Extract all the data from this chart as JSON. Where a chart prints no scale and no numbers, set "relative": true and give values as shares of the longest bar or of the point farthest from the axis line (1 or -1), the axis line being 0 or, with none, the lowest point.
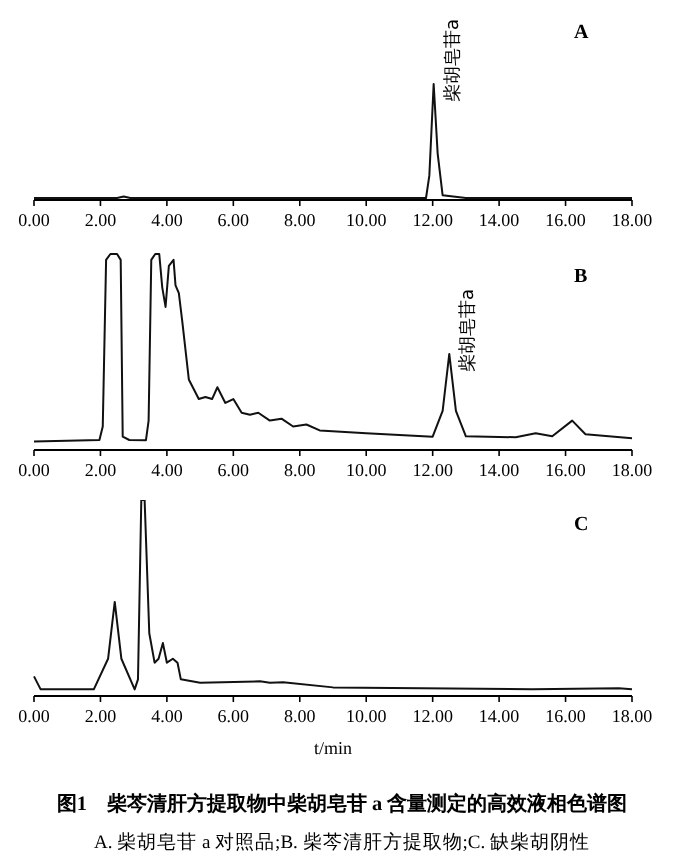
{
  "chart_data": [
    {
      "type": "line",
      "relative": true,
      "color": "#111111",
      "xlim": [
        0,
        18
      ],
      "xticks": [
        {
          "value": 0,
          "label": "0.00"
        },
        {
          "value": 2,
          "label": "2.00"
        },
        {
          "value": 4,
          "label": "4.00"
        },
        {
          "value": 6,
          "label": "6.00"
        },
        {
          "value": 8,
          "label": "8.00"
        },
        {
          "value": 10,
          "label": "10.00"
        },
        {
          "value": 12,
          "label": "12.00"
        },
        {
          "value": 14,
          "label": "14.00"
        },
        {
          "value": 16,
          "label": "16.00"
        },
        {
          "value": 18,
          "label": "18.00"
        }
      ],
      "x": [
        0,
        2.5,
        2.7,
        2.9,
        6,
        11.8,
        11.9,
        12.03,
        12.15,
        12.3,
        13,
        18
      ],
      "values": [
        0.017,
        0.017,
        0.03,
        0.017,
        0.017,
        0.017,
        0.21,
        1,
        0.4,
        0.04,
        0.017,
        0.017
      ],
      "annotations": [
        "A",
        {
          "text": "柴胡皂苷a",
          "x": 12.03,
          "y": 1
        }
      ]
    },
    {
      "type": "line",
      "relative": true,
      "color": "#111111",
      "xlim": [
        0,
        18
      ],
      "xticks": [
        {
          "value": 0,
          "label": "0.00"
        },
        {
          "value": 2,
          "label": "2.00"
        },
        {
          "value": 4,
          "label": "4.00"
        },
        {
          "value": 6,
          "label": "6.00"
        },
        {
          "value": 8,
          "label": "8.00"
        },
        {
          "value": 10,
          "label": "10.00"
        },
        {
          "value": 12,
          "label": "12.00"
        },
        {
          "value": 14,
          "label": "14.00"
        },
        {
          "value": 16,
          "label": "16.00"
        },
        {
          "value": 18,
          "label": "18.00"
        }
      ],
      "x": [
        0,
        1.97,
        2.07,
        2.17,
        2.3,
        2.5,
        2.61,
        2.67,
        2.87,
        3.37,
        3.45,
        3.53,
        3.65,
        3.77,
        3.86,
        3.96,
        4.06,
        4.2,
        4.26,
        4.36,
        4.46,
        4.66,
        4.96,
        5.16,
        5.36,
        5.52,
        5.76,
        6.0,
        6.25,
        6.5,
        6.75,
        7.1,
        7.45,
        7.8,
        8.2,
        8.6,
        10,
        12,
        12.3,
        12.5,
        12.7,
        13,
        14.5,
        15.1,
        15.6,
        16.2,
        16.6,
        18
      ],
      "values": [
        0.044,
        0.051,
        0.12,
        0.97,
        1,
        1,
        0.97,
        0.068,
        0.051,
        0.05,
        0.15,
        0.97,
        1,
        1,
        0.83,
        0.73,
        0.94,
        0.97,
        0.84,
        0.8,
        0.66,
        0.36,
        0.26,
        0.27,
        0.26,
        0.32,
        0.24,
        0.26,
        0.19,
        0.18,
        0.19,
        0.15,
        0.16,
        0.12,
        0.13,
        0.1,
        0.085,
        0.068,
        0.2,
        0.49,
        0.2,
        0.07,
        0.065,
        0.085,
        0.07,
        0.15,
        0.08,
        0.06
      ],
      "annotations": [
        "B",
        {
          "text": "柴胡皂苷a",
          "x": 12.5,
          "y": 0.49
        }
      ]
    },
    {
      "type": "line",
      "relative": true,
      "color": "#111111",
      "xlim": [
        0,
        18
      ],
      "xlabel": "t/min",
      "xticks": [
        {
          "value": 0,
          "label": "0.00"
        },
        {
          "value": 2,
          "label": "2.00"
        },
        {
          "value": 4,
          "label": "4.00"
        },
        {
          "value": 6,
          "label": "6.00"
        },
        {
          "value": 8,
          "label": "8.00"
        },
        {
          "value": 10,
          "label": "10.00"
        },
        {
          "value": 12,
          "label": "12.00"
        },
        {
          "value": 14,
          "label": "14.00"
        },
        {
          "value": 16,
          "label": "16.00"
        },
        {
          "value": 18,
          "label": "18.00"
        }
      ],
      "x": [
        0,
        0.2,
        1.8,
        2.23,
        2.43,
        2.63,
        3.03,
        3.13,
        3.23,
        3.33,
        3.47,
        3.63,
        3.75,
        3.88,
        4.0,
        4.18,
        4.32,
        4.42,
        5.0,
        6.8,
        7.1,
        7.5,
        9.0,
        15,
        17.6,
        18
      ],
      "values": [
        0.1,
        0.034,
        0.034,
        0.19,
        0.48,
        0.19,
        0.034,
        0.085,
        1,
        1,
        0.32,
        0.17,
        0.19,
        0.27,
        0.17,
        0.19,
        0.17,
        0.085,
        0.068,
        0.075,
        0.068,
        0.07,
        0.044,
        0.034,
        0.04,
        0.034
      ],
      "annotations": [
        "C",
        "图1　柴芩清肝方提取物中柴胡皂苷 a 含量测定的高效液相色谱图",
        "A. 柴胡皂苷 a 对照品;B. 柴芩清肝方提取物;C. 缺柴胡阴性"
      ]
    }
  ]
}
